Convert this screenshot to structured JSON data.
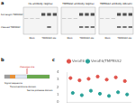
{
  "panel_a": {
    "label": "a",
    "blots": [
      {
        "title": "His antibody (Sigma)"
      },
      {
        "title": "TMPRSS2 antibody (Sigma)"
      },
      {
        "title": "TMPRSS2 antibody (Abcam)"
      }
    ],
    "band_labels": [
      "Full-length TMPRSS2",
      "Cleaved TMPRSS2"
    ],
    "lanes": [
      "Mock",
      "TMPRSS2-His"
    ]
  },
  "panel_b": {
    "label": "b",
    "domains": [
      "Signal sequence",
      "Transmembrane domain",
      "Serine protease domain"
    ],
    "site": "Cleavage site"
  },
  "chart_data": {
    "type": "scatter",
    "label": "c",
    "categories": [
      null,
      null,
      null,
      null,
      null,
      null,
      null
    ],
    "series": [
      {
        "name": "VeroE6",
        "color": "#e0524a",
        "values": [
          3.2,
          2.9,
          3.1,
          3.4,
          3.0,
          3.3,
          2.8
        ]
      },
      {
        "name": "VeroE6/TMPRSS2",
        "color": "#2aa198",
        "values": [
          1.2,
          0.9,
          1.5,
          1.1,
          0.8,
          1.3,
          1.0
        ]
      }
    ],
    "ylim": [
      0,
      4
    ],
    "yticks": [
      0,
      1,
      2,
      3,
      4
    ],
    "grid": false,
    "legend": "top",
    "tick_labels": "y"
  }
}
